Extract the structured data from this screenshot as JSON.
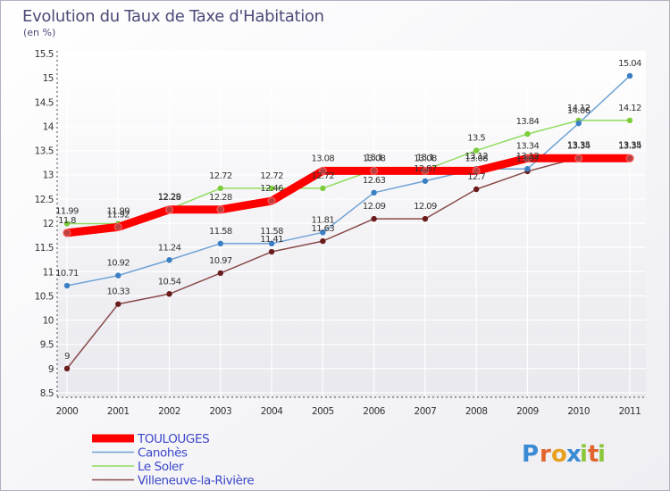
{
  "chart_data": {
    "type": "line",
    "title": "Evolution du Taux de Taxe d'Habitation",
    "subtitle": "(en %)",
    "xlabel": "",
    "ylabel": "",
    "ylim": [
      8.5,
      15.5
    ],
    "yticks": [
      "8.5",
      "9",
      "9.5",
      "10",
      "10.5",
      "11",
      "11.5",
      "12",
      "12.5",
      "13",
      "13.5",
      "14",
      "14.5",
      "15",
      "15.5"
    ],
    "categories": [
      "2000",
      "2001",
      "2002",
      "2003",
      "2004",
      "2005",
      "2006",
      "2007",
      "2008",
      "2009",
      "2010",
      "2011"
    ],
    "grid": true,
    "legend_position": "bottom-left",
    "series": [
      {
        "name": "TOULOUGES",
        "color": "#ff0000",
        "point_color": "#c04040",
        "values": [
          11.8,
          11.92,
          12.28,
          12.28,
          12.46,
          13.08,
          13.08,
          13.08,
          13.08,
          13.34,
          13.34,
          13.34
        ],
        "labels": [
          "11.8",
          "11.92",
          "12.28",
          "12.28",
          "12.46",
          "13.08",
          "13.08",
          "13.08",
          "13.08",
          "13.34",
          "13.34",
          "13.34"
        ]
      },
      {
        "name": "Canohès",
        "color": "#6fa2d4",
        "point_color": "#3a7fc4",
        "values": [
          10.71,
          10.92,
          11.24,
          11.58,
          11.58,
          11.81,
          12.63,
          12.87,
          13.12,
          13.12,
          14.06,
          15.04
        ],
        "labels": [
          "10.71",
          "10.92",
          "11.24",
          "11.58",
          "11.58",
          "11.81",
          "12.63",
          "12.87",
          "13.12",
          "13.12",
          "14.06",
          "15.04"
        ]
      },
      {
        "name": "Le Soler",
        "color": "#8fdc5c",
        "point_color": "#7ccc3c",
        "values": [
          11.99,
          11.99,
          12.29,
          12.72,
          12.72,
          12.72,
          13.1,
          13.1,
          13.5,
          13.84,
          14.12,
          14.12
        ],
        "labels": [
          "11.99",
          "11.99",
          "12.29",
          "12.72",
          "12.72",
          "12.72",
          "13.1",
          "13.1",
          "13.5",
          "13.84",
          "14.12",
          "14.12"
        ]
      },
      {
        "name": "Villeneuve-la-Rivière",
        "color": "#8a4a4a",
        "point_color": "#6a1c1c",
        "values": [
          9,
          10.33,
          10.54,
          10.97,
          11.41,
          11.63,
          12.09,
          12.09,
          12.7,
          13.07,
          13.35,
          13.35
        ],
        "labels": [
          "9",
          "10.33",
          "10.54",
          "10.97",
          "11.41",
          "11.63",
          "12.09",
          "12.09",
          "12.7",
          "13.07",
          "13.35",
          "13.35"
        ]
      }
    ]
  },
  "branding": {
    "logo_letters": [
      "P",
      "r",
      "o",
      "x",
      "i",
      "t",
      "i"
    ],
    "logo_colors": [
      "#3a8ad4",
      "#e0642c",
      "#e8a020",
      "#3a8ad4",
      "#8cc63a",
      "#e0642c",
      "#8cc63a"
    ]
  }
}
